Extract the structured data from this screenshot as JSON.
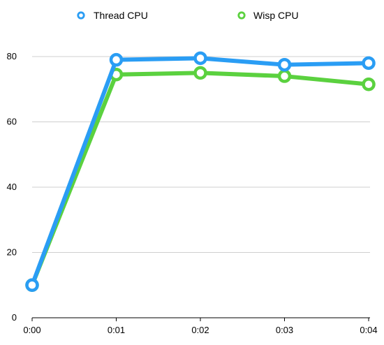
{
  "chart_data": {
    "type": "line",
    "x": [
      "0:00",
      "0:01",
      "0:02",
      "0:03",
      "0:04"
    ],
    "series": [
      {
        "name": "Thread CPU",
        "color": "#2a9df4",
        "values": [
          10,
          79,
          79.5,
          77.5,
          78
        ]
      },
      {
        "name": "Wisp CPU",
        "color": "#5bd13f",
        "values": [
          10,
          74.5,
          75,
          74,
          71.5
        ]
      }
    ],
    "y_ticks": [
      "0",
      "20",
      "40",
      "60",
      "80"
    ],
    "ylim": [
      0,
      80
    ],
    "grid": true,
    "legend_position": "top"
  }
}
